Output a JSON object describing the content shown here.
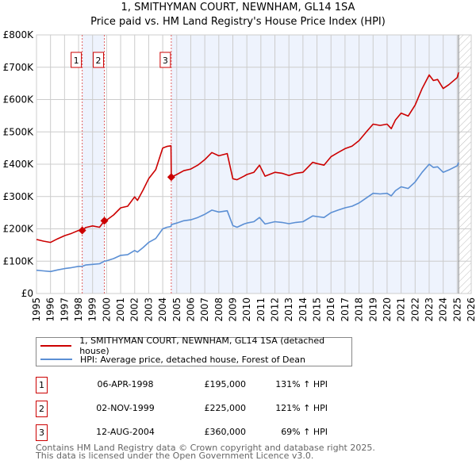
{
  "chart_data": {
    "type": "line",
    "title": "1, SMITHYMAN COURT, NEWNHAM, GL14 1SA",
    "subtitle": "Price paid vs. HM Land Registry's House Price Index (HPI)",
    "xlim": [
      1995,
      2026
    ],
    "ylim": [
      0,
      800000
    ],
    "x_ticks": [
      "1995",
      "1996",
      "1997",
      "1998",
      "1999",
      "2000",
      "2001",
      "2002",
      "2003",
      "2004",
      "2005",
      "2006",
      "2007",
      "2008",
      "2009",
      "2010",
      "2011",
      "2012",
      "2013",
      "2014",
      "2015",
      "2016",
      "2017",
      "2018",
      "2019",
      "2020",
      "2021",
      "2022",
      "2023",
      "2024",
      "2025",
      "2026"
    ],
    "y_ticks": [
      {
        "v": 0,
        "label": "£0"
      },
      {
        "v": 100000,
        "label": "£100K"
      },
      {
        "v": 200000,
        "label": "£200K"
      },
      {
        "v": 300000,
        "label": "£300K"
      },
      {
        "v": 400000,
        "label": "£400K"
      },
      {
        "v": 500000,
        "label": "£500K"
      },
      {
        "v": 600000,
        "label": "£600K"
      },
      {
        "v": 700000,
        "label": "£700K"
      },
      {
        "v": 800000,
        "label": "£800K"
      }
    ],
    "grid": true,
    "x": [
      1995,
      1995.5,
      1996,
      1996.5,
      1997,
      1997.5,
      1998,
      1998.26,
      1998.5,
      1999,
      1999.5,
      1999.84,
      2000,
      2000.5,
      2001,
      2001.5,
      2002,
      2002.2,
      2002.6,
      2003,
      2003.5,
      2004,
      2004.3,
      2004.59,
      2004.61,
      2005,
      2005.5,
      2006,
      2006.5,
      2007,
      2007.5,
      2008,
      2008.6,
      2009,
      2009.3,
      2009.8,
      2010,
      2010.5,
      2010.9,
      2011.3,
      2012,
      2012.5,
      2013,
      2013.5,
      2014,
      2014.7,
      2015,
      2015.5,
      2016,
      2016.5,
      2017,
      2017.5,
      2018,
      2018.5,
      2019,
      2019.5,
      2020,
      2020.3,
      2020.6,
      2021,
      2021.5,
      2022,
      2022.5,
      2023,
      2023.3,
      2023.6,
      2024,
      2024.4,
      2025,
      2025.1
    ],
    "series": [
      {
        "name": "1, SMITHYMAN COURT, NEWNHAM, GL14 1SA (detached house)",
        "color": "#cc0000",
        "values": [
          167000,
          162000,
          158000,
          169000,
          179000,
          186000,
          195000,
          195000,
          204000,
          209000,
          205000,
          225000,
          227000,
          243000,
          265000,
          270000,
          299000,
          288000,
          320000,
          355000,
          383000,
          450000,
          455000,
          457000,
          360000,
          368000,
          380000,
          385000,
          397000,
          414000,
          436000,
          426000,
          433000,
          355000,
          352000,
          363000,
          368000,
          375000,
          397000,
          363000,
          375000,
          372000,
          365000,
          372000,
          375000,
          406000,
          402000,
          397000,
          423000,
          436000,
          448000,
          456000,
          473000,
          499000,
          524000,
          520000,
          524000,
          510000,
          537000,
          558000,
          549000,
          583000,
          634000,
          676000,
          659000,
          662000,
          634000,
          646000,
          668000,
          684000
        ]
      },
      {
        "name": "HPI: Average price, detached house, Forest of Dean",
        "color": "#5b8fd4",
        "values": [
          72000,
          70000,
          68000,
          73000,
          77000,
          80000,
          84000,
          84000,
          88000,
          90000,
          92000,
          100000,
          101000,
          108000,
          118000,
          120000,
          133000,
          128000,
          142000,
          158000,
          170000,
          200000,
          205000,
          207000,
          213000,
          218000,
          225000,
          228000,
          235000,
          245000,
          258000,
          252000,
          256000,
          210000,
          205000,
          215000,
          218000,
          222000,
          235000,
          215000,
          222000,
          220000,
          216000,
          220000,
          222000,
          240000,
          238000,
          235000,
          250000,
          258000,
          265000,
          270000,
          280000,
          295000,
          310000,
          308000,
          310000,
          302000,
          318000,
          330000,
          325000,
          345000,
          375000,
          400000,
          390000,
          392000,
          375000,
          382000,
          395000,
          405000
        ]
      }
    ],
    "transactions": [
      {
        "id": "1",
        "x": 1998.26,
        "date": "06-APR-1998",
        "price_value": 195000,
        "price": "£195,000",
        "hpi": "131% ↑ HPI"
      },
      {
        "id": "2",
        "x": 1999.84,
        "date": "02-NOV-1999",
        "price_value": 225000,
        "price": "£225,000",
        "hpi": "121% ↑ HPI"
      },
      {
        "id": "3",
        "x": 2004.61,
        "date": "12-AUG-2004",
        "price_value": 360000,
        "price": "£360,000",
        "hpi": "69% ↑ HPI"
      }
    ],
    "data_end_x": 2025.1,
    "legend_position": "bottom"
  },
  "footer": {
    "line1": "Contains HM Land Registry data © Crown copyright and database right 2025.",
    "line2": "This data is licensed under the Open Government Licence v3.0."
  }
}
